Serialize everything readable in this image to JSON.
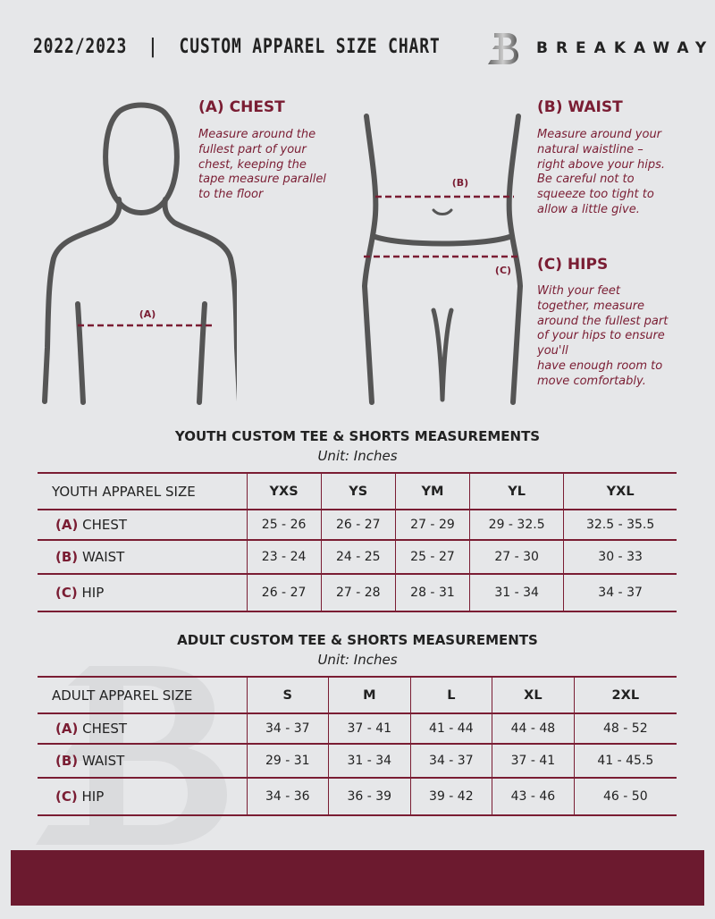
{
  "header": {
    "title": "2022/2023  |  CUSTOM APPAREL SIZE CHART",
    "brand": "BREAKAWAY",
    "logo_letter": "B"
  },
  "colors": {
    "accent": "#7a1d33",
    "background": "#e6e7e9",
    "footer": "#6c1a2f"
  },
  "guide": {
    "chest": {
      "title": "(A) CHEST",
      "label": "(A)",
      "lines": [
        "Measure around the",
        "fullest part of your",
        "chest, keeping the",
        "tape measure parallel",
        "to the floor"
      ]
    },
    "waist": {
      "title": "(B) WAIST",
      "label": "(B)",
      "lines": [
        "Measure around your",
        "natural waistline –",
        "right above your hips.",
        "Be careful not to",
        "squeeze too tight to",
        "allow a little give."
      ]
    },
    "hips": {
      "title": "(C) HIPS",
      "label": "(C)",
      "lines": [
        "With your feet",
        "together, measure",
        "around the fullest part",
        "of your hips to ensure",
        "you'll",
        "have enough room to",
        "move comfortably."
      ]
    }
  },
  "youth": {
    "title": "YOUTH CUSTOM TEE & SHORTS MEASUREMENTS",
    "unit": "Unit: Inches",
    "size_label": "YOUTH APPAREL SIZE",
    "sizes": [
      "YXS",
      "YS",
      "YM",
      "YL",
      "YXL"
    ],
    "rows": [
      {
        "code": "(A)",
        "name": "CHEST",
        "values": [
          "25 - 26",
          "26 - 27",
          "27 - 29",
          "29 - 32.5",
          "32.5 - 35.5"
        ]
      },
      {
        "code": "(B)",
        "name": "WAIST",
        "values": [
          "23 - 24",
          "24 - 25",
          "25 - 27",
          "27 - 30",
          "30 - 33"
        ]
      },
      {
        "code": "(C)",
        "name": "HIP",
        "values": [
          "26 - 27",
          "27 - 28",
          "28 - 31",
          "31 - 34",
          "34 - 37"
        ]
      }
    ]
  },
  "adult": {
    "title": "ADULT CUSTOM TEE & SHORTS MEASUREMENTS",
    "unit": "Unit: Inches",
    "size_label": "ADULT APPAREL SIZE",
    "sizes": [
      "S",
      "M",
      "L",
      "XL",
      "2XL"
    ],
    "rows": [
      {
        "code": "(A)",
        "name": "CHEST",
        "values": [
          "34 - 37",
          "37 - 41",
          "41 - 44",
          "44 - 48",
          "48 - 52"
        ]
      },
      {
        "code": "(B)",
        "name": "WAIST",
        "values": [
          "29 - 31",
          "31 - 34",
          "34 - 37",
          "37 - 41",
          "41 - 45.5"
        ]
      },
      {
        "code": "(C)",
        "name": "HIP",
        "values": [
          "34 - 36",
          "36 - 39",
          "39 - 42",
          "43 - 46",
          "46 - 50"
        ]
      }
    ]
  }
}
